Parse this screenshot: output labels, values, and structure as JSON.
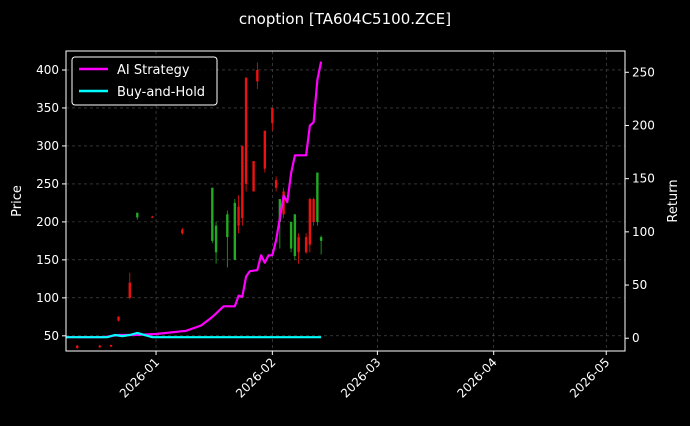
{
  "chart_data": {
    "type": "candlestick+line",
    "title": "cnoption [TA604C5100.ZCE]",
    "ylabel_left": "Price",
    "ylabel_right": "Return",
    "x_ticks": [
      "2026-01",
      "2026-02",
      "2026-03",
      "2026-04",
      "2026-05"
    ],
    "x_tick_dates": [
      "2026-01-01",
      "2026-02-01",
      "2026-03-01",
      "2026-04-01",
      "2026-05-01"
    ],
    "xlim": [
      "2025-12-08",
      "2026-05-06"
    ],
    "ylim_left": [
      30,
      425
    ],
    "ylim_right": [
      -12,
      270
    ],
    "yticks_left": [
      "50",
      "100",
      "150",
      "200",
      "250",
      "300",
      "350",
      "400"
    ],
    "yticks_right": [
      "0",
      "50",
      "100",
      "150",
      "200",
      "250"
    ],
    "grid": true,
    "legend_position": "top-left",
    "legend": [
      {
        "name": "AI Strategy",
        "color": "#ff00ff"
      },
      {
        "name": "Buy-and-Hold",
        "color": "#00ffff"
      }
    ],
    "candles": [
      {
        "date": "2025-12-11",
        "open": 37,
        "close": 34,
        "high": 38,
        "low": 33
      },
      {
        "date": "2025-12-17",
        "open": 37,
        "close": 35,
        "high": 38,
        "low": 34
      },
      {
        "date": "2025-12-20",
        "open": 38,
        "close": 36,
        "high": 38,
        "low": 35
      },
      {
        "date": "2025-12-22",
        "open": 75,
        "close": 70,
        "high": 76,
        "low": 69
      },
      {
        "date": "2025-12-25",
        "open": 120,
        "close": 100,
        "high": 133,
        "low": 98
      },
      {
        "date": "2025-12-27",
        "open": 206,
        "close": 212,
        "high": 212,
        "low": 203
      },
      {
        "date": "2025-12-31",
        "open": 207,
        "close": 206,
        "high": 208,
        "low": 205
      },
      {
        "date": "2026-01-08",
        "open": 190,
        "close": 185,
        "high": 192,
        "low": 183
      },
      {
        "date": "2026-01-16",
        "open": 175,
        "close": 245,
        "high": 245,
        "low": 172
      },
      {
        "date": "2026-01-17",
        "open": 160,
        "close": 195,
        "high": 200,
        "low": 145
      },
      {
        "date": "2026-01-20",
        "open": 180,
        "close": 210,
        "high": 215,
        "low": 140
      },
      {
        "date": "2026-01-22",
        "open": 150,
        "close": 225,
        "high": 230,
        "low": 150
      },
      {
        "date": "2026-01-23",
        "open": 220,
        "close": 195,
        "high": 235,
        "low": 185
      },
      {
        "date": "2026-01-24",
        "open": 300,
        "close": 205,
        "high": 300,
        "low": 195
      },
      {
        "date": "2026-01-25",
        "open": 390,
        "close": 250,
        "high": 390,
        "low": 240
      },
      {
        "date": "2026-01-27",
        "open": 280,
        "close": 240,
        "high": 280,
        "low": 240
      },
      {
        "date": "2026-01-28",
        "open": 400,
        "close": 385,
        "high": 410,
        "low": 375
      },
      {
        "date": "2026-01-30",
        "open": 320,
        "close": 270,
        "high": 320,
        "low": 265
      },
      {
        "date": "2026-02-01",
        "open": 350,
        "close": 330,
        "high": 350,
        "low": 320
      },
      {
        "date": "2026-02-02",
        "open": 255,
        "close": 245,
        "high": 260,
        "low": 240
      },
      {
        "date": "2026-02-03",
        "open": 200,
        "close": 230,
        "high": 230,
        "low": 165
      },
      {
        "date": "2026-02-04",
        "open": 240,
        "close": 210,
        "high": 245,
        "low": 205
      },
      {
        "date": "2026-02-06",
        "open": 165,
        "close": 200,
        "high": 200,
        "low": 160
      },
      {
        "date": "2026-02-07",
        "open": 155,
        "close": 210,
        "high": 210,
        "low": 150
      },
      {
        "date": "2026-02-08",
        "open": 180,
        "close": 160,
        "high": 185,
        "low": 145
      },
      {
        "date": "2026-02-10",
        "open": 180,
        "close": 160,
        "high": 185,
        "low": 158
      },
      {
        "date": "2026-02-11",
        "open": 230,
        "close": 170,
        "high": 232,
        "low": 160
      },
      {
        "date": "2026-02-12",
        "open": 230,
        "close": 200,
        "high": 232,
        "low": 195
      },
      {
        "date": "2026-02-13",
        "open": 200,
        "close": 265,
        "high": 265,
        "low": 195
      },
      {
        "date": "2026-02-14",
        "open": 175,
        "close": 180,
        "high": 182,
        "low": 157
      }
    ],
    "series": [
      {
        "name": "AI Strategy",
        "color": "#ff00ff",
        "points": [
          [
            "2025-12-08",
            1
          ],
          [
            "2025-12-18",
            1
          ],
          [
            "2025-12-22",
            3
          ],
          [
            "2025-12-26",
            3
          ],
          [
            "2026-01-01",
            4
          ],
          [
            "2026-01-09",
            7
          ],
          [
            "2026-01-13",
            12
          ],
          [
            "2026-01-16",
            20
          ],
          [
            "2026-01-19",
            30
          ],
          [
            "2026-01-22",
            30
          ],
          [
            "2026-01-23",
            40
          ],
          [
            "2026-01-24",
            39
          ],
          [
            "2026-01-25",
            58
          ],
          [
            "2026-01-26",
            63
          ],
          [
            "2026-01-28",
            64
          ],
          [
            "2026-01-29",
            78
          ],
          [
            "2026-01-30",
            71
          ],
          [
            "2026-01-31",
            78
          ],
          [
            "2026-02-01",
            78
          ],
          [
            "2026-02-02",
            92
          ],
          [
            "2026-02-04",
            134
          ],
          [
            "2026-02-05",
            128
          ],
          [
            "2026-02-06",
            155
          ],
          [
            "2026-02-07",
            172
          ],
          [
            "2026-02-09",
            172
          ],
          [
            "2026-02-10",
            172
          ],
          [
            "2026-02-11",
            200
          ],
          [
            "2026-02-12",
            203
          ],
          [
            "2026-02-13",
            243
          ],
          [
            "2026-02-14",
            260
          ]
        ]
      },
      {
        "name": "Buy-and-Hold",
        "color": "#00ffff",
        "points": [
          [
            "2025-12-08",
            1
          ],
          [
            "2025-12-19",
            1
          ],
          [
            "2025-12-21",
            3
          ],
          [
            "2025-12-23",
            2
          ],
          [
            "2025-12-25",
            3
          ],
          [
            "2025-12-27",
            5
          ],
          [
            "2025-12-31",
            1
          ],
          [
            "2026-02-14",
            1
          ]
        ]
      }
    ]
  }
}
